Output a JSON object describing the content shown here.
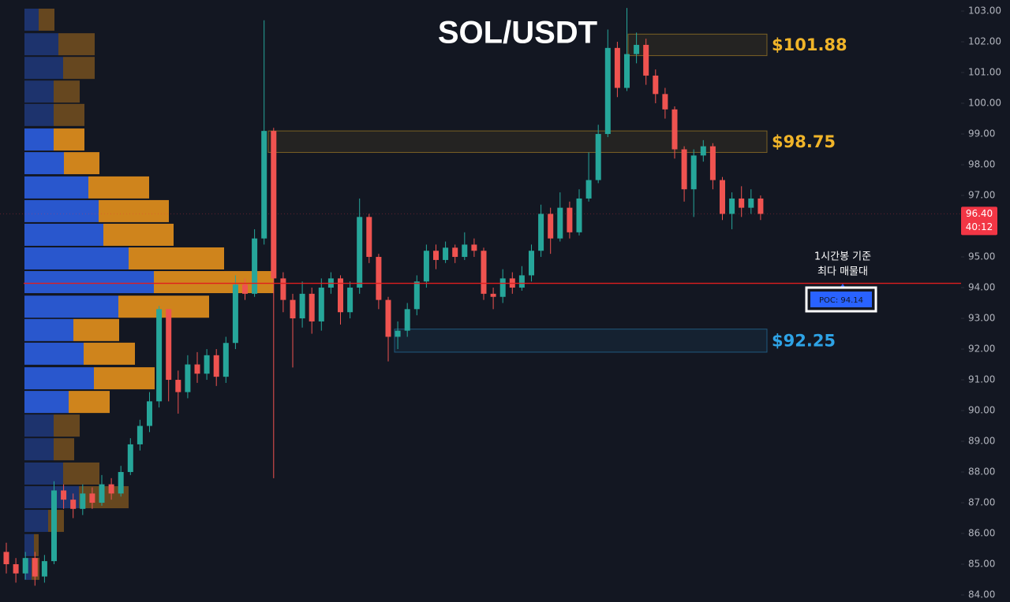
{
  "chart_data": {
    "type": "candlestick",
    "title": "SOL/USDT",
    "up_color": "#26a69a",
    "down_color": "#ef5350",
    "ylim": [
      83.77,
      103.36
    ],
    "yticks": [
      {
        "value": 84,
        "label": "84.00"
      },
      {
        "value": 85,
        "label": "85.00"
      },
      {
        "value": 86,
        "label": "86.00"
      },
      {
        "value": 87,
        "label": "87.00"
      },
      {
        "value": 88,
        "label": "88.00"
      },
      {
        "value": 89,
        "label": "89.00"
      },
      {
        "value": 90,
        "label": "90.00"
      },
      {
        "value": 91,
        "label": "91.00"
      },
      {
        "value": 92,
        "label": "92.00"
      },
      {
        "value": 93,
        "label": "93.00"
      },
      {
        "value": 94,
        "label": "94.00"
      },
      {
        "value": 95,
        "label": "95.00"
      },
      {
        "value": 97,
        "label": "97.00"
      },
      {
        "value": 98,
        "label": "98.00"
      },
      {
        "value": 99,
        "label": "99.00"
      },
      {
        "value": 100,
        "label": "100.00"
      },
      {
        "value": 101,
        "label": "101.00"
      },
      {
        "value": 102,
        "label": "102.00"
      },
      {
        "value": 103,
        "label": "103.00"
      }
    ],
    "open": [
      85.4,
      85.0,
      84.7,
      85.2,
      84.6,
      85.1,
      87.4,
      87.1,
      86.8,
      87.3,
      87.0,
      87.6,
      87.3,
      88.0,
      88.9,
      89.5,
      90.3,
      93.3,
      91.0,
      90.6,
      91.5,
      91.2,
      91.8,
      91.1,
      92.2,
      94.1,
      93.8,
      95.6,
      99.1,
      94.3,
      93.6,
      93.0,
      93.8,
      92.9,
      94.0,
      94.3,
      93.2,
      94.0,
      96.3,
      95.0,
      93.6,
      92.4,
      92.6,
      93.3,
      94.2,
      95.2,
      94.9,
      95.3,
      95.0,
      95.4,
      95.2,
      93.8,
      93.7,
      94.3,
      94.0,
      94.4,
      95.2,
      96.4,
      95.6,
      96.6,
      95.8,
      96.9,
      97.5,
      99.0,
      101.8,
      100.5,
      101.6,
      101.9,
      100.9,
      100.3,
      99.8,
      98.5,
      97.2,
      98.3,
      98.6,
      97.5,
      96.4,
      96.9,
      96.6,
      96.9
    ],
    "high": [
      85.7,
      85.2,
      85.4,
      85.4,
      85.3,
      87.7,
      87.6,
      87.3,
      87.6,
      87.5,
      87.9,
      87.8,
      88.2,
      89.1,
      89.7,
      90.6,
      93.4,
      93.3,
      91.3,
      91.8,
      91.9,
      92.0,
      92.0,
      92.4,
      94.4,
      94.3,
      95.9,
      102.7,
      99.2,
      94.5,
      93.8,
      94.2,
      94.0,
      94.3,
      94.5,
      94.4,
      94.2,
      96.9,
      96.4,
      95.1,
      93.7,
      92.9,
      93.5,
      94.4,
      95.4,
      95.4,
      95.5,
      95.4,
      95.8,
      95.6,
      95.3,
      94.0,
      94.6,
      94.5,
      94.7,
      95.4,
      96.7,
      96.6,
      97.1,
      96.8,
      97.2,
      98.4,
      99.3,
      102.4,
      102.0,
      103.1,
      102.3,
      102.1,
      101.1,
      100.5,
      99.9,
      98.6,
      98.5,
      98.8,
      98.7,
      97.6,
      97.1,
      97.3,
      97.2,
      97.0
    ],
    "low": [
      84.7,
      84.4,
      84.5,
      84.3,
      84.4,
      85.0,
      86.8,
      86.5,
      86.6,
      86.8,
      86.9,
      87.1,
      87.2,
      87.9,
      88.7,
      89.3,
      90.1,
      90.3,
      89.9,
      90.4,
      90.9,
      91.0,
      90.8,
      90.9,
      92.0,
      93.6,
      93.7,
      95.4,
      87.8,
      93.2,
      91.4,
      92.7,
      92.5,
      92.6,
      93.8,
      92.8,
      93.0,
      93.8,
      94.8,
      93.3,
      91.6,
      92.0,
      92.4,
      93.1,
      94.0,
      94.6,
      94.8,
      94.8,
      94.9,
      95.0,
      93.6,
      93.3,
      93.5,
      93.8,
      93.9,
      94.2,
      95.0,
      95.1,
      95.5,
      95.6,
      95.7,
      96.8,
      97.4,
      98.9,
      100.2,
      100.4,
      101.3,
      100.6,
      100.0,
      99.5,
      98.2,
      96.8,
      96.3,
      98.1,
      97.2,
      96.2,
      95.9,
      96.3,
      96.4,
      96.2
    ],
    "close": [
      85.0,
      84.7,
      85.2,
      84.6,
      85.1,
      87.4,
      87.1,
      86.8,
      87.3,
      87.0,
      87.6,
      87.3,
      88.0,
      88.9,
      89.5,
      90.3,
      93.3,
      91.0,
      90.6,
      91.5,
      91.2,
      91.8,
      91.1,
      92.2,
      94.1,
      93.8,
      95.6,
      99.1,
      94.3,
      93.6,
      93.0,
      93.8,
      92.9,
      94.0,
      94.3,
      93.2,
      94.0,
      96.3,
      95.0,
      93.6,
      92.4,
      92.6,
      93.3,
      94.2,
      95.2,
      94.9,
      95.3,
      95.0,
      95.4,
      95.2,
      93.8,
      93.7,
      94.3,
      94.0,
      94.4,
      95.2,
      96.4,
      95.6,
      96.6,
      95.8,
      96.9,
      97.5,
      99.0,
      101.8,
      100.5,
      101.6,
      101.9,
      100.9,
      100.3,
      99.8,
      98.5,
      97.2,
      98.3,
      98.6,
      97.5,
      96.4,
      96.9,
      96.6,
      96.9,
      96.4
    ],
    "volume_profile": {
      "prices": [
        102.72,
        101.92,
        101.15,
        100.38,
        99.62,
        98.82,
        98.05,
        97.26,
        96.49,
        95.72,
        94.95,
        94.18,
        93.38,
        92.62,
        91.85,
        91.05,
        90.28,
        89.51,
        88.74,
        87.95,
        87.18,
        86.41,
        85.62,
        84.85
      ],
      "buy": [
        18,
        43,
        49,
        37,
        37,
        37,
        50,
        81,
        94,
        100,
        132,
        164,
        119,
        62,
        75,
        88,
        56,
        37,
        37,
        49,
        69,
        30,
        12,
        9
      ],
      "sell": [
        20,
        46,
        40,
        33,
        39,
        39,
        45,
        77,
        89,
        89,
        121,
        152,
        115,
        58,
        65,
        77,
        52,
        33,
        26,
        46,
        63,
        20,
        6,
        10
      ],
      "buy_color": "#2a5bd7",
      "sell_color": "#d98a1c",
      "value_area": [
        89.9,
        99.2
      ]
    },
    "zones": [
      {
        "low": 101.55,
        "high": 102.25,
        "label": "$101.88",
        "color": "#f0b429"
      },
      {
        "low": 98.4,
        "high": 99.1,
        "label": "$98.75",
        "color": "#f0b429"
      },
      {
        "low": 91.9,
        "high": 92.65,
        "label": "$92.25",
        "color": "#2ea3e6"
      }
    ],
    "poc": {
      "value": 94.14,
      "label": "POC: 94.14",
      "note": [
        "1시간봉 기준",
        "최다 매물대"
      ],
      "color": "#e01e1e"
    },
    "last_price": {
      "value": 96.4,
      "label": "96.40",
      "countdown": "40:12",
      "color": "#f23645"
    }
  }
}
